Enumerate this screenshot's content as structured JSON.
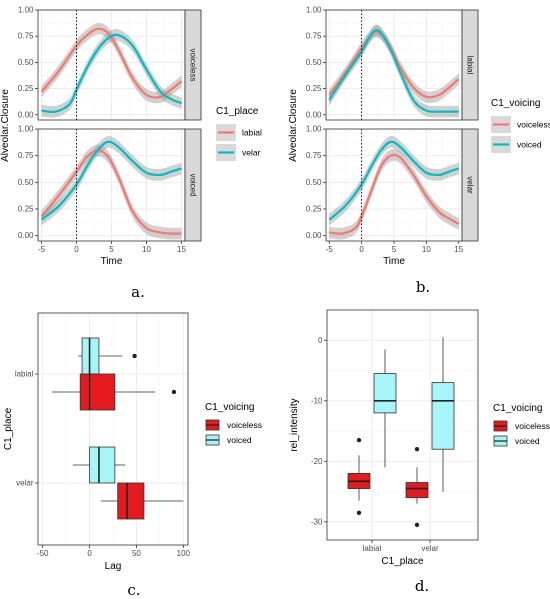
{
  "chart_data": [
    {
      "type": "line",
      "panel_caption": "a.",
      "xlabel": "Time",
      "ylabel": "Alveolar.Closure",
      "xlim": [
        -5.5,
        15.5
      ],
      "ylim": [
        -0.05,
        1.0
      ],
      "xticks": [
        -5,
        0,
        5,
        10,
        15
      ],
      "yticks": [
        0.0,
        0.25,
        0.5,
        0.75,
        1.0
      ],
      "ytick_labels": [
        "0.00",
        "0.25",
        "0.50",
        "0.75",
        "1.00"
      ],
      "vline_x": 0,
      "legend": {
        "title": "C1_place",
        "position": "right"
      },
      "facets": [
        {
          "strip": "voiceless",
          "series": [
            {
              "name": "labial",
              "color": "#F8766D",
              "x": [
                -5,
                -2.5,
                0,
                1.5,
                3,
                4.5,
                6,
                8,
                10,
                12,
                13.5,
                15
              ],
              "y": [
                0.22,
                0.42,
                0.66,
                0.76,
                0.82,
                0.78,
                0.62,
                0.35,
                0.19,
                0.17,
                0.24,
                0.32
              ]
            },
            {
              "name": "velar",
              "color": "#00BFC4",
              "x": [
                -5,
                -3,
                -1,
                0,
                1.5,
                3,
                4.5,
                6,
                8,
                10,
                12,
                13.5,
                15
              ],
              "y": [
                0.04,
                0.03,
                0.1,
                0.24,
                0.45,
                0.62,
                0.73,
                0.76,
                0.66,
                0.43,
                0.22,
                0.15,
                0.11
              ]
            }
          ]
        },
        {
          "strip": "voiced",
          "series": [
            {
              "name": "labial",
              "color": "#F8766D",
              "x": [
                -5,
                -2.5,
                0,
                1.5,
                3,
                4.5,
                6,
                8,
                10,
                12,
                13.5,
                15
              ],
              "y": [
                0.18,
                0.38,
                0.6,
                0.74,
                0.8,
                0.74,
                0.55,
                0.23,
                0.07,
                0.03,
                0.02,
                0.02
              ]
            },
            {
              "name": "velar",
              "color": "#00BFC4",
              "x": [
                -5,
                -2.5,
                0,
                1.5,
                3,
                4.5,
                6,
                8,
                10,
                12,
                13.5,
                15
              ],
              "y": [
                0.15,
                0.28,
                0.48,
                0.65,
                0.8,
                0.88,
                0.83,
                0.7,
                0.59,
                0.57,
                0.6,
                0.63
              ]
            }
          ]
        }
      ]
    },
    {
      "type": "line",
      "panel_caption": "b.",
      "xlabel": "Time",
      "ylabel": "Alveolar.Closure",
      "xlim": [
        -5.5,
        15.5
      ],
      "ylim": [
        -0.05,
        1.0
      ],
      "xticks": [
        -5,
        0,
        5,
        10,
        15
      ],
      "yticks": [
        0.0,
        0.25,
        0.5,
        0.75,
        1.0
      ],
      "ytick_labels": [
        "0.00",
        "0.25",
        "0.50",
        "0.75",
        "1.00"
      ],
      "vline_x": 0,
      "legend": {
        "title": "C1_voicing",
        "position": "right"
      },
      "facets": [
        {
          "strip": "labial",
          "series": [
            {
              "name": "voiceless",
              "color": "#F8766D",
              "x": [
                -5,
                -2.5,
                0,
                1,
                2,
                3,
                4.5,
                6,
                8,
                10,
                12,
                13.5,
                15
              ],
              "y": [
                0.19,
                0.4,
                0.64,
                0.72,
                0.79,
                0.77,
                0.64,
                0.45,
                0.26,
                0.17,
                0.19,
                0.26,
                0.34
              ]
            },
            {
              "name": "voiced",
              "color": "#00BFC4",
              "x": [
                -5,
                -2.5,
                0,
                1,
                2,
                3,
                4.5,
                6,
                8,
                10,
                12,
                13.5,
                15
              ],
              "y": [
                0.14,
                0.38,
                0.6,
                0.72,
                0.8,
                0.78,
                0.62,
                0.4,
                0.14,
                0.04,
                0.03,
                0.03,
                0.03
              ]
            }
          ]
        },
        {
          "strip": "velar",
          "series": [
            {
              "name": "voiceless",
              "color": "#F8766D",
              "x": [
                -5,
                -3,
                -1,
                0,
                1.5,
                3,
                4.5,
                6,
                8,
                10,
                12,
                13.5,
                15
              ],
              "y": [
                0.03,
                0.02,
                0.07,
                0.18,
                0.42,
                0.65,
                0.75,
                0.73,
                0.57,
                0.37,
                0.22,
                0.16,
                0.11
              ]
            },
            {
              "name": "voiced",
              "color": "#00BFC4",
              "x": [
                -5,
                -2.5,
                0,
                1.5,
                3,
                4.5,
                6,
                8,
                10,
                12,
                13.5,
                15
              ],
              "y": [
                0.15,
                0.28,
                0.48,
                0.65,
                0.8,
                0.88,
                0.83,
                0.7,
                0.59,
                0.57,
                0.6,
                0.63
              ]
            }
          ]
        }
      ]
    },
    {
      "type": "boxplot",
      "orientation": "horizontal",
      "panel_caption": "c.",
      "xlabel": "Lag",
      "ylabel": "C1_place",
      "xlim": [
        -55,
        105
      ],
      "xticks": [
        -50,
        0,
        50,
        100
      ],
      "categories": [
        "labial",
        "velar"
      ],
      "legend": {
        "title": "C1_voicing",
        "position": "right",
        "entries": [
          {
            "name": "voiceless",
            "color": "#E41A1C"
          },
          {
            "name": "voiced",
            "color": "#A6F5F7"
          }
        ]
      },
      "boxes": [
        {
          "category": "labial",
          "group": "voiced",
          "whisker_low": -12,
          "q1": -8,
          "median": 0,
          "q3": 10,
          "whisker_high": 35,
          "outliers": [
            48
          ]
        },
        {
          "category": "labial",
          "group": "voiceless",
          "whisker_low": -40,
          "q1": -10,
          "median": 0,
          "q3": 27,
          "whisker_high": 70,
          "outliers": [
            90
          ]
        },
        {
          "category": "velar",
          "group": "voiced",
          "whisker_low": -18,
          "q1": 0,
          "median": 10,
          "q3": 27,
          "whisker_high": 38,
          "outliers": []
        },
        {
          "category": "velar",
          "group": "voiceless",
          "whisker_low": 12,
          "q1": 30,
          "median": 40,
          "q3": 58,
          "whisker_high": 100,
          "outliers": []
        }
      ]
    },
    {
      "type": "boxplot",
      "orientation": "vertical",
      "panel_caption": "d.",
      "xlabel": "C1_place",
      "ylabel": "rel_intensity",
      "ylim": [
        -33,
        5
      ],
      "yticks": [
        -30,
        -20,
        -10,
        0
      ],
      "categories": [
        "labial",
        "velar"
      ],
      "legend": {
        "title": "C1_voicing",
        "position": "right",
        "entries": [
          {
            "name": "voiceless",
            "color": "#E41A1C"
          },
          {
            "name": "voiced",
            "color": "#A6F5F7"
          }
        ]
      },
      "boxes": [
        {
          "category": "labial",
          "group": "voiceless",
          "whisker_low": -26.5,
          "q1": -24.5,
          "median": -23.3,
          "q3": -22,
          "whisker_high": -19,
          "outliers": [
            -28.5,
            -16.5
          ]
        },
        {
          "category": "labial",
          "group": "voiced",
          "whisker_low": -21,
          "q1": -12,
          "median": -10,
          "q3": -5.5,
          "whisker_high": -1.5,
          "outliers": []
        },
        {
          "category": "velar",
          "group": "voiceless",
          "whisker_low": -27,
          "q1": -26,
          "median": -24.5,
          "q3": -23.5,
          "whisker_high": -21,
          "outliers": [
            -30.5,
            -18
          ]
        },
        {
          "category": "velar",
          "group": "voiced",
          "whisker_low": -25,
          "q1": -18,
          "median": -10,
          "q3": -7,
          "whisker_high": 0.5,
          "outliers": []
        }
      ]
    }
  ]
}
